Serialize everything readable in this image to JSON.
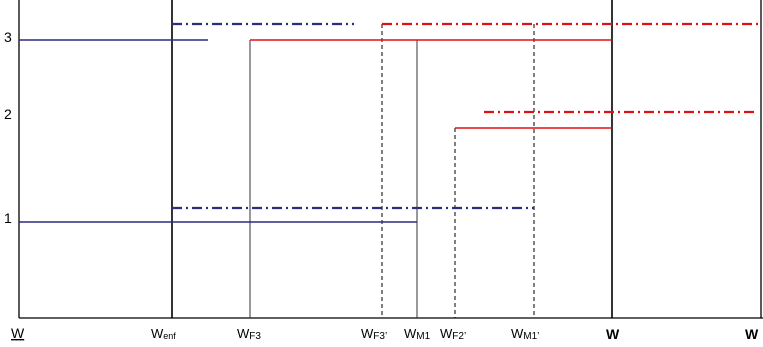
{
  "y_labels": {
    "l3": "3",
    "l2": "2",
    "l1": "1"
  },
  "x_labels": {
    "w_under": "W",
    "w_enf_main": "W",
    "w_enf_sub": "enf",
    "w_f3_main": "W",
    "w_f3_sub": "F3",
    "w_f3p_main": "W",
    "w_f3p_sub": "F3’",
    "w_m1_main": "W",
    "w_m1_sub": "M1",
    "w_f2p_main": "W",
    "w_f2p_sub": "F2’",
    "w_m1p_main": "W",
    "w_m1p_sub": "M1’",
    "w_bold_1": "W",
    "w_bold_2": "W"
  },
  "colors": {
    "blue": "#2b2b7f",
    "red": "#e01010",
    "axis": "#000000",
    "guide": "#444444"
  }
}
